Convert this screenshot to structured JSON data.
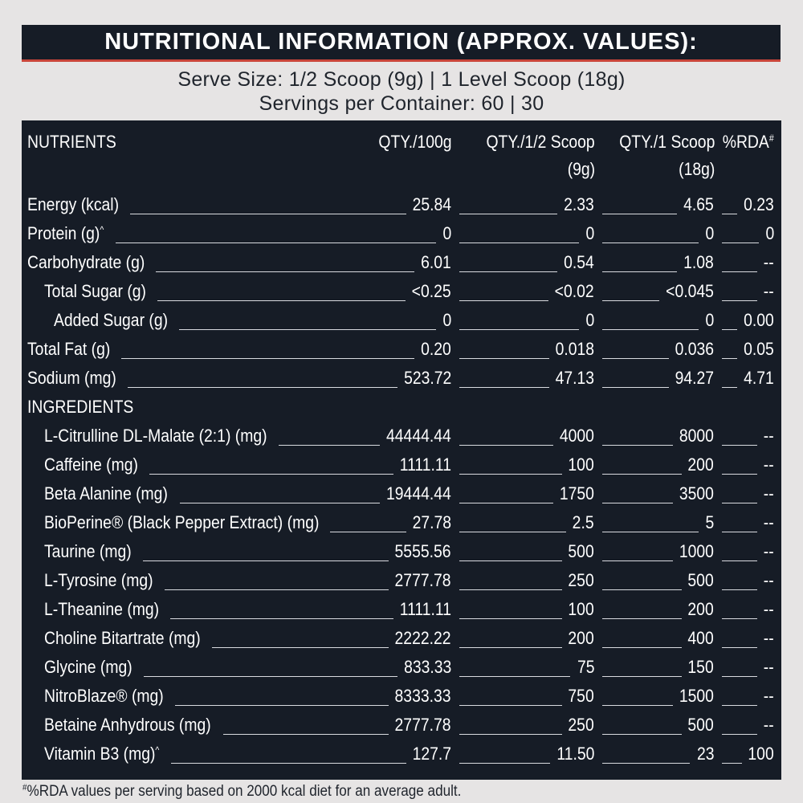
{
  "title": "NUTRITIONAL INFORMATION (APPROX. VALUES):",
  "serve_size": "Serve Size: 1/2 Scoop (9g) | 1 Level Scoop (18g)",
  "servings": "Servings per Container: 60 | 30",
  "headers": {
    "nutrients": "NUTRIENTS",
    "per100": "QTY./100g",
    "half_scoop_a": "QTY./1/2 Scoop",
    "half_scoop_b": "(9g)",
    "scoop_a": "QTY./1 Scoop",
    "scoop_b": "(18g)",
    "rda": "%RDA",
    "rda_mark": "#"
  },
  "nutrients": [
    {
      "name": "Energy (kcal)",
      "mark": "",
      "per100": "25.84",
      "half": "2.33",
      "scoop": "4.65",
      "rda": "0.23"
    },
    {
      "name": "Protein (g)",
      "mark": "^",
      "per100": "0",
      "half": "0",
      "scoop": "0",
      "rda": "0"
    },
    {
      "name": "Carbohydrate (g)",
      "mark": "",
      "per100": "6.01",
      "half": "0.54",
      "scoop": "1.08",
      "rda": "--"
    },
    {
      "name": "Total Sugar (g)",
      "mark": "",
      "per100": "<0.25",
      "half": "<0.02",
      "scoop": "<0.045",
      "rda": "--"
    },
    {
      "name": "Added Sugar (g)",
      "mark": "",
      "per100": "0",
      "half": "0",
      "scoop": "0",
      "rda": "0.00"
    },
    {
      "name": "Total Fat (g)",
      "mark": "",
      "per100": "0.20",
      "half": "0.018",
      "scoop": "0.036",
      "rda": "0.05"
    },
    {
      "name": "Sodium (mg)",
      "mark": "",
      "per100": "523.72",
      "half": "47.13",
      "scoop": "94.27",
      "rda": "4.71"
    }
  ],
  "ingredients_label": "INGREDIENTS",
  "ingredients": [
    {
      "name": "L-Citrulline DL-Malate (2:1) (mg)",
      "mark": "",
      "per100": "44444.44",
      "half": "4000",
      "scoop": "8000",
      "rda": "--"
    },
    {
      "name": "Caffeine (mg)",
      "mark": "",
      "per100": "1111.11",
      "half": "100",
      "scoop": "200",
      "rda": "--"
    },
    {
      "name": "Beta Alanine (mg)",
      "mark": "",
      "per100": "19444.44",
      "half": "1750",
      "scoop": "3500",
      "rda": "--"
    },
    {
      "name": "BioPerine® (Black Pepper Extract) (mg)",
      "mark": "",
      "per100": "27.78",
      "half": "2.5",
      "scoop": "5",
      "rda": "--"
    },
    {
      "name": "Taurine (mg)",
      "mark": "",
      "per100": "5555.56",
      "half": "500",
      "scoop": "1000",
      "rda": "--"
    },
    {
      "name": "L-Tyrosine (mg)",
      "mark": "",
      "per100": "2777.78",
      "half": "250",
      "scoop": "500",
      "rda": "--"
    },
    {
      "name": "L-Theanine (mg)",
      "mark": "",
      "per100": "1111.11",
      "half": "100",
      "scoop": "200",
      "rda": "--"
    },
    {
      "name": "Choline Bitartrate (mg)",
      "mark": "",
      "per100": "2222.22",
      "half": "200",
      "scoop": "400",
      "rda": "--"
    },
    {
      "name": "Glycine (mg)",
      "mark": "",
      "per100": "833.33",
      "half": "75",
      "scoop": "150",
      "rda": "--"
    },
    {
      "name": "NitroBlaze® (mg)",
      "mark": "",
      "per100": "8333.33",
      "half": "750",
      "scoop": "1500",
      "rda": "--"
    },
    {
      "name": "Betaine Anhydrous (mg)",
      "mark": "",
      "per100": "2777.78",
      "half": "250",
      "scoop": "500",
      "rda": "--"
    },
    {
      "name": "Vitamin B3 (mg)",
      "mark": "^",
      "per100": "127.7",
      "half": "11.50",
      "scoop": "23",
      "rda": "100"
    }
  ],
  "footnote_mark": "#",
  "footnote": "%RDA values per serving based on 2000 kcal diet for an average adult.",
  "colors": {
    "panel": "#161c26",
    "accent": "#c9453a",
    "background": "#e6e4e4",
    "text": "#ffffff"
  }
}
